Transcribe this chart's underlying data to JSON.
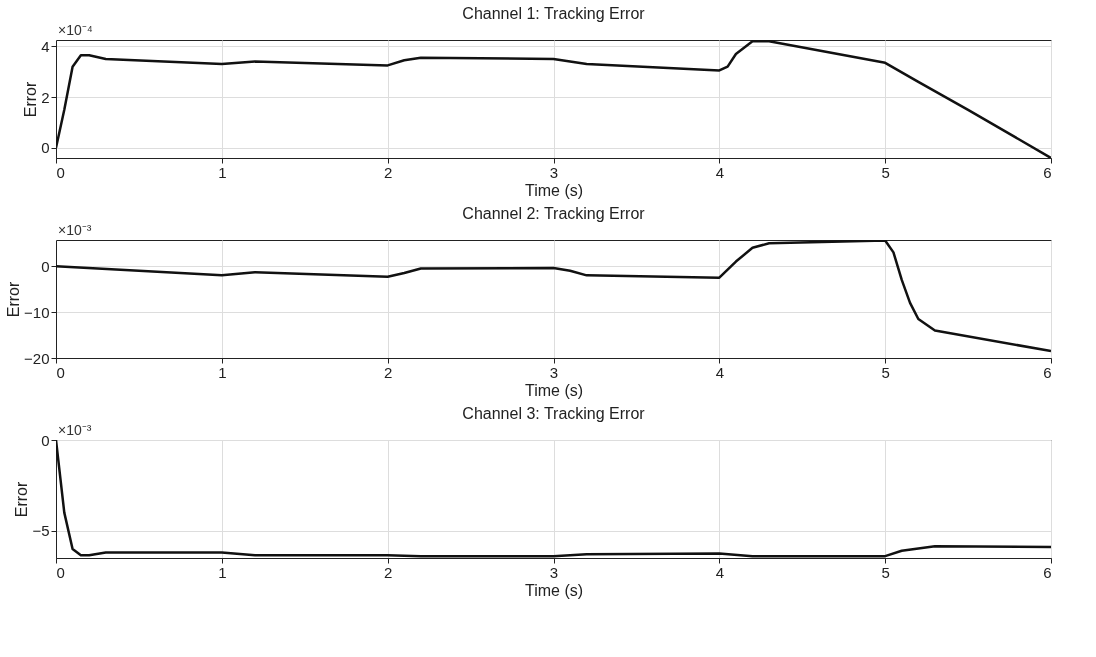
{
  "chart_data": [
    {
      "type": "line",
      "title": "Channel 1: Tracking Error",
      "xlabel": "Time (s)",
      "ylabel": "Error",
      "annotations": [
        "×10⁻⁴"
      ],
      "xlim": [
        0,
        6
      ],
      "xticks": [
        0,
        1,
        2,
        3,
        4,
        5,
        6
      ],
      "ylim": [
        -0.4,
        4.25
      ],
      "yticks": [
        0,
        2,
        4
      ],
      "grid": true,
      "x": [
        0,
        0.05,
        0.1,
        0.15,
        0.2,
        0.3,
        1.0,
        1.1,
        1.2,
        2.0,
        2.1,
        2.2,
        3.0,
        3.1,
        3.2,
        4.0,
        4.05,
        4.1,
        4.2,
        4.3,
        5.0,
        5.2,
        5.5,
        6.0
      ],
      "series": [
        {
          "color": "#111111",
          "values": [
            0,
            1.5,
            3.2,
            3.65,
            3.65,
            3.5,
            3.3,
            3.35,
            3.4,
            3.25,
            3.45,
            3.55,
            3.5,
            3.4,
            3.3,
            3.05,
            3.2,
            3.7,
            4.2,
            4.2,
            3.35,
            2.6,
            1.5,
            -0.4
          ]
        }
      ]
    },
    {
      "type": "line",
      "title": "Channel 2: Tracking Error",
      "xlabel": "Time (s)",
      "ylabel": "Error",
      "annotations": [
        "×10⁻³"
      ],
      "xlim": [
        0,
        6
      ],
      "xticks": [
        0,
        1,
        2,
        3,
        4,
        5,
        6
      ],
      "ylim": [
        -20,
        5.7
      ],
      "yticks": [
        -20,
        -10,
        0
      ],
      "grid": true,
      "x": [
        0,
        1.0,
        1.2,
        2.0,
        2.1,
        2.2,
        3.0,
        3.1,
        3.2,
        4.0,
        4.1,
        4.2,
        4.3,
        5.0,
        5.05,
        5.1,
        5.15,
        5.2,
        5.3,
        6.0
      ],
      "series": [
        {
          "color": "#111111",
          "values": [
            0,
            -2,
            -1.3,
            -2.3,
            -1.5,
            -0.5,
            -0.4,
            -1,
            -2,
            -2.5,
            1,
            4,
            5,
            5.6,
            3,
            -3,
            -8,
            -11.5,
            -14,
            -18.5
          ]
        }
      ]
    },
    {
      "type": "line",
      "title": "Channel 3: Tracking Error",
      "xlabel": "Time (s)",
      "ylabel": "Error",
      "annotations": [
        "×10⁻³"
      ],
      "xlim": [
        0,
        6
      ],
      "xticks": [
        0,
        1,
        2,
        3,
        4,
        5,
        6
      ],
      "ylim": [
        -6.5,
        0
      ],
      "yticks": [
        -5,
        0
      ],
      "grid": true,
      "x": [
        0,
        0.05,
        0.1,
        0.15,
        0.2,
        0.3,
        1.0,
        1.2,
        2.0,
        2.2,
        3.0,
        3.2,
        4.0,
        4.2,
        5.0,
        5.1,
        5.3,
        6.0
      ],
      "series": [
        {
          "color": "#111111",
          "values": [
            0,
            -4,
            -6,
            -6.35,
            -6.35,
            -6.2,
            -6.2,
            -6.35,
            -6.35,
            -6.4,
            -6.4,
            -6.3,
            -6.25,
            -6.4,
            -6.4,
            -6.1,
            -5.85,
            -5.9
          ]
        }
      ]
    }
  ]
}
